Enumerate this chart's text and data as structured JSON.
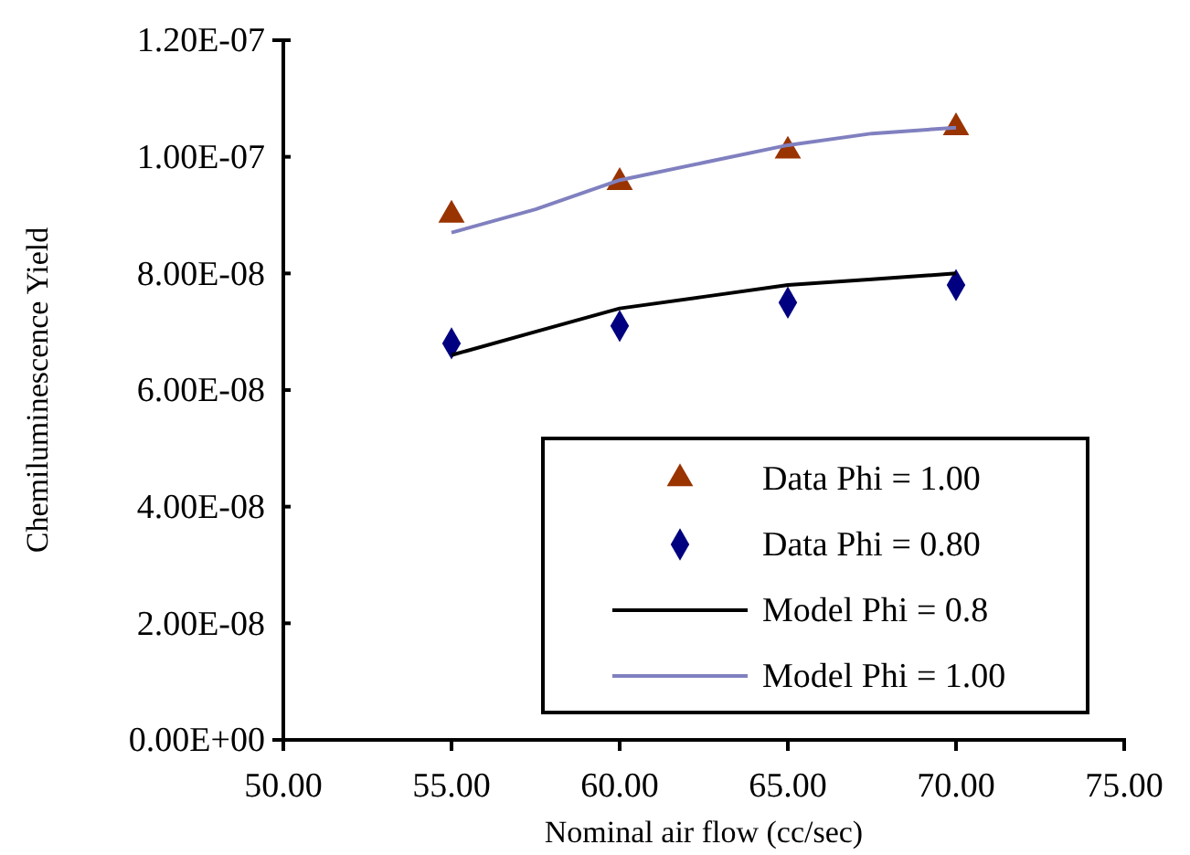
{
  "chart_data": {
    "type": "scatter",
    "xlabel": "Nominal air flow (cc/sec)",
    "ylabel": "Chemiluminescence Yield",
    "xlim": [
      50,
      75
    ],
    "xticks": [
      {
        "value": 50,
        "label": "50.00"
      },
      {
        "value": 55,
        "label": "55.00"
      },
      {
        "value": 60,
        "label": "60.00"
      },
      {
        "value": 65,
        "label": "65.00"
      },
      {
        "value": 70,
        "label": "70.00"
      },
      {
        "value": 75,
        "label": "75.00"
      }
    ],
    "ylim": [
      0,
      1.2e-07
    ],
    "yticks": [
      {
        "value": 0,
        "label": "0.00E+00"
      },
      {
        "value": 2e-08,
        "label": "2.00E-08"
      },
      {
        "value": 4e-08,
        "label": "4.00E-08"
      },
      {
        "value": 6e-08,
        "label": "6.00E-08"
      },
      {
        "value": 8e-08,
        "label": "8.00E-08"
      },
      {
        "value": 1e-07,
        "label": "1.00E-07"
      },
      {
        "value": 1.2e-07,
        "label": "1.20E-07"
      }
    ],
    "grid": false,
    "legend": "bottom right",
    "series": [
      {
        "name": "Data Phi = 1.00",
        "marker": "triangle",
        "color": "#993300",
        "x": [
          55,
          60,
          65,
          70
        ],
        "values": [
          9e-08,
          9.56e-08,
          1.01e-07,
          1.05e-07
        ]
      },
      {
        "name": "Data Phi = 0.80",
        "marker": "diamond",
        "color": "#000080",
        "x": [
          55,
          60,
          65,
          70
        ],
        "values": [
          6.8e-08,
          7.1e-08,
          7.5e-08,
          7.8e-08
        ]
      },
      {
        "name": "Model Phi = 0.8",
        "type": "line",
        "marker": "none",
        "line_style": "solid",
        "color": "#000000",
        "x": [
          55,
          57.5,
          60,
          62.5,
          65,
          67.5,
          70
        ],
        "values": [
          6.6e-08,
          7e-08,
          7.4e-08,
          7.6e-08,
          7.8e-08,
          7.9e-08,
          8e-08
        ]
      },
      {
        "name": "Model Phi = 1.00",
        "type": "line",
        "marker": "none",
        "line_style": "solid",
        "color": "#8080c0",
        "x": [
          55,
          57.5,
          60,
          62.5,
          65,
          67.5,
          70
        ],
        "values": [
          8.7e-08,
          9.1e-08,
          9.6e-08,
          9.9e-08,
          1.02e-07,
          1.04e-07,
          1.05e-07
        ]
      }
    ]
  }
}
